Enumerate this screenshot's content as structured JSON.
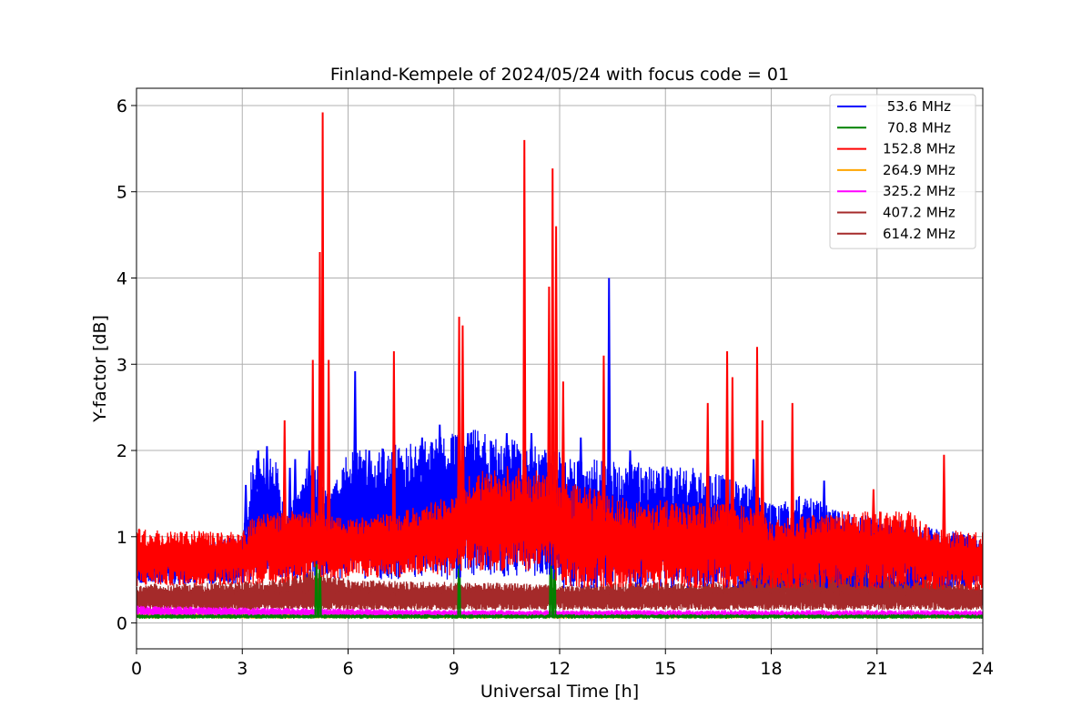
{
  "chart_data": {
    "type": "line",
    "title": "Finland-Kempele of 2024/05/24 with focus code = 01",
    "xlabel": "Universal Time [h]",
    "ylabel": "Y-factor [dB]",
    "xlim": [
      0,
      24
    ],
    "ylim": [
      -0.3,
      6.2
    ],
    "xticks": [
      0,
      3,
      6,
      9,
      12,
      15,
      18,
      21,
      24
    ],
    "yticks": [
      0,
      1,
      2,
      3,
      4,
      5,
      6
    ],
    "grid": true,
    "legend_position": "top-right",
    "series": [
      {
        "name": " 53.6 MHz",
        "color": "#0000ff",
        "band_low": [
          [
            0,
            0.45
          ],
          [
            3.3,
            0.45
          ],
          [
            3.4,
            0.5
          ],
          [
            9.1,
            0.5
          ],
          [
            9.3,
            0.55
          ],
          [
            11.8,
            0.5
          ],
          [
            12,
            0.4
          ],
          [
            24,
            0.4
          ]
        ],
        "band_high": [
          [
            0,
            0.9
          ],
          [
            3,
            1.0
          ],
          [
            3.3,
            1.95
          ],
          [
            4,
            1.9
          ],
          [
            4.2,
            1.2
          ],
          [
            5,
            2.0
          ],
          [
            5.5,
            1.5
          ],
          [
            6,
            2.0
          ],
          [
            9,
            2.2
          ],
          [
            9.5,
            2.25
          ],
          [
            11,
            2.1
          ],
          [
            12,
            2.0
          ],
          [
            13,
            1.9
          ],
          [
            16,
            1.8
          ],
          [
            17.5,
            1.6
          ],
          [
            18,
            1.4
          ],
          [
            19,
            1.5
          ],
          [
            20,
            1.3
          ],
          [
            24,
            1.0
          ]
        ],
        "spikes": [
          [
            3.1,
            1.6
          ],
          [
            3.45,
            2.0
          ],
          [
            3.7,
            2.05
          ],
          [
            4.35,
            1.8
          ],
          [
            4.5,
            1.9
          ],
          [
            4.9,
            2.0
          ],
          [
            6.2,
            2.92
          ],
          [
            6.6,
            2.0
          ],
          [
            7.3,
            2.1
          ],
          [
            8.1,
            2.15
          ],
          [
            8.6,
            2.3
          ],
          [
            9.4,
            2.2
          ],
          [
            10.5,
            2.2
          ],
          [
            11.2,
            2.2
          ],
          [
            12.6,
            2.15
          ],
          [
            13.4,
            4.0
          ],
          [
            14.0,
            2.0
          ],
          [
            16.2,
            2.0
          ],
          [
            17.5,
            1.9
          ],
          [
            19.5,
            1.65
          ]
        ]
      },
      {
        "name": " 70.8 MHz",
        "color": "#008000",
        "band_low": [
          [
            0,
            0.05
          ],
          [
            24,
            0.05
          ]
        ],
        "band_high": [
          [
            0,
            0.1
          ],
          [
            24,
            0.1
          ]
        ],
        "spikes": [
          [
            5.1,
            0.95
          ],
          [
            5.2,
            0.85
          ],
          [
            9.15,
            1.3
          ],
          [
            11.75,
            1.45
          ],
          [
            11.85,
            1.7
          ]
        ]
      },
      {
        "name": "152.8 MHz",
        "color": "#ff0000",
        "band_low": [
          [
            0,
            0.42
          ],
          [
            4,
            0.45
          ],
          [
            5,
            0.5
          ],
          [
            9,
            0.55
          ],
          [
            9.2,
            0.6
          ],
          [
            11.7,
            0.6
          ],
          [
            12,
            0.4
          ],
          [
            18,
            0.4
          ],
          [
            24,
            0.38
          ]
        ],
        "band_high": [
          [
            0,
            1.1
          ],
          [
            3,
            1.05
          ],
          [
            3.3,
            1.25
          ],
          [
            4,
            1.3
          ],
          [
            5,
            1.3
          ],
          [
            6,
            1.2
          ],
          [
            8,
            1.35
          ],
          [
            9,
            1.5
          ],
          [
            9.2,
            1.7
          ],
          [
            10,
            1.8
          ],
          [
            11,
            1.85
          ],
          [
            11.7,
            1.7
          ],
          [
            12,
            1.65
          ],
          [
            14,
            1.45
          ],
          [
            16,
            1.4
          ],
          [
            17.5,
            1.35
          ],
          [
            18,
            1.2
          ],
          [
            20,
            1.3
          ],
          [
            22,
            1.3
          ],
          [
            22.5,
            1.1
          ],
          [
            24,
            1.05
          ]
        ],
        "spikes": [
          [
            4.2,
            2.35
          ],
          [
            5.0,
            3.05
          ],
          [
            5.2,
            4.3
          ],
          [
            5.28,
            5.92
          ],
          [
            5.45,
            3.05
          ],
          [
            7.3,
            3.15
          ],
          [
            9.15,
            3.55
          ],
          [
            9.25,
            3.45
          ],
          [
            11.0,
            5.6
          ],
          [
            11.7,
            3.9
          ],
          [
            11.8,
            5.27
          ],
          [
            11.9,
            4.6
          ],
          [
            12.1,
            2.8
          ],
          [
            13.25,
            3.1
          ],
          [
            16.2,
            2.55
          ],
          [
            16.75,
            3.15
          ],
          [
            16.9,
            2.85
          ],
          [
            17.6,
            3.2
          ],
          [
            17.75,
            2.35
          ],
          [
            18.6,
            2.55
          ],
          [
            20.9,
            1.55
          ],
          [
            22.9,
            1.95
          ]
        ]
      },
      {
        "name": "264.9 MHz",
        "color": "#ffa500",
        "band_low": [
          [
            0,
            0.05
          ],
          [
            24,
            0.05
          ]
        ],
        "band_high": [
          [
            0,
            0.12
          ],
          [
            24,
            0.12
          ]
        ],
        "spikes": []
      },
      {
        "name": "325.2 MHz",
        "color": "#ff00ff",
        "band_low": [
          [
            0,
            0.08
          ],
          [
            24,
            0.05
          ]
        ],
        "band_high": [
          [
            0,
            0.2
          ],
          [
            3,
            0.18
          ],
          [
            9,
            0.15
          ],
          [
            24,
            0.15
          ]
        ],
        "spikes": []
      },
      {
        "name": "407.2 MHz",
        "color": "#a52a2a",
        "band_low": [
          [
            0,
            0.15
          ],
          [
            24,
            0.15
          ]
        ],
        "band_high": [
          [
            0,
            0.45
          ],
          [
            4,
            0.5
          ],
          [
            5,
            0.65
          ],
          [
            6,
            0.5
          ],
          [
            12,
            0.45
          ],
          [
            17,
            0.5
          ],
          [
            18,
            0.9
          ],
          [
            19,
            0.75
          ],
          [
            21,
            0.65
          ],
          [
            24,
            0.45
          ]
        ],
        "spikes": []
      },
      {
        "name": "614.2 MHz",
        "color": "#a52a2a",
        "band_low": [
          [
            0,
            0.15
          ],
          [
            24,
            0.15
          ]
        ],
        "band_high": [
          [
            0,
            0.4
          ],
          [
            24,
            0.4
          ]
        ],
        "spikes": []
      }
    ]
  }
}
